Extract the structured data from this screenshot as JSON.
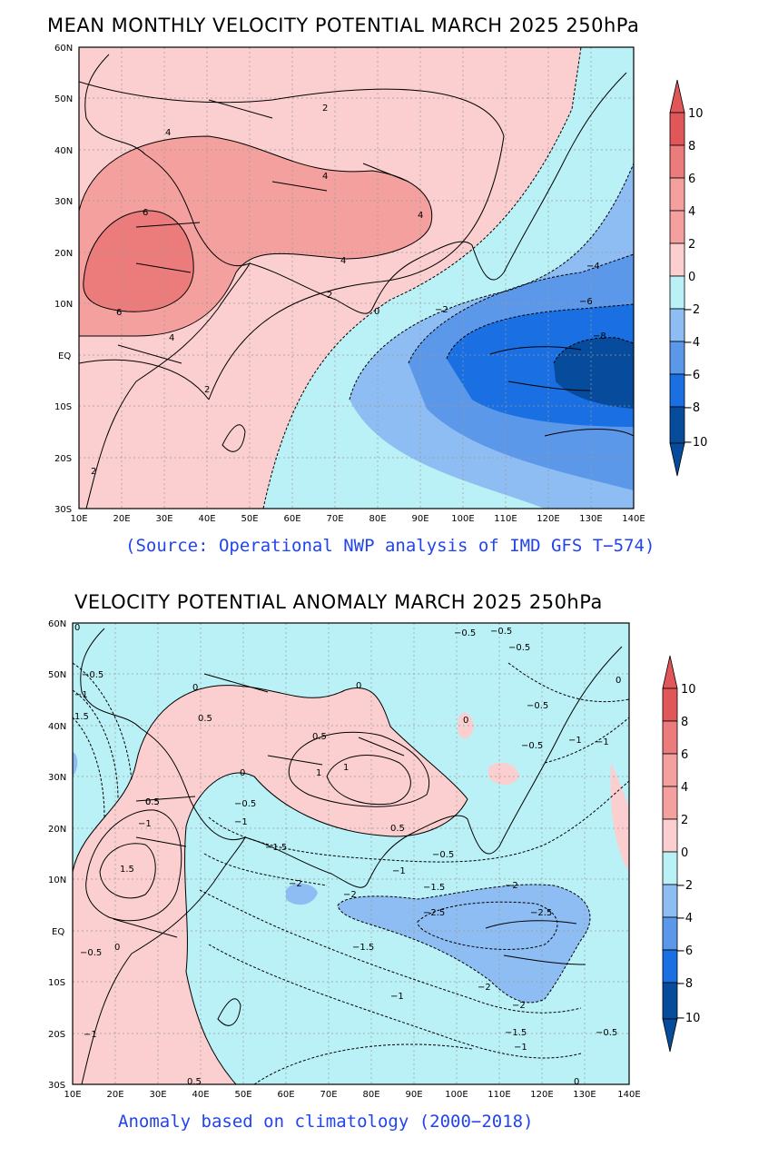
{
  "colors": {
    "r4": "#e15759",
    "r3": "#ec7c7c",
    "r2": "#f4a09f",
    "r1": "#fbcfcf",
    "b1": "#b9f1f7",
    "b2": "#8dbdf2",
    "b3": "#5c98ea",
    "b4": "#1a6fe2",
    "b5": "#074c9c",
    "land": "#000000",
    "source_text": "#2244ee"
  },
  "panels": [
    {
      "title": "MEAN MONTHLY VELOCITY POTENTIAL MARCH 2025 250hPa",
      "footer": "(Source: Operational NWP analysis of IMD GFS T−574)",
      "lat_labels": [
        "60N",
        "50N",
        "40N",
        "30N",
        "20N",
        "10N",
        "EQ",
        "10S",
        "20S",
        "30S"
      ],
      "lon_labels": [
        "10E",
        "20E",
        "30E",
        "40E",
        "50E",
        "60E",
        "70E",
        "80E",
        "90E",
        "100E",
        "110E",
        "120E",
        "130E",
        "140E"
      ],
      "colorbar_labels": [
        "10",
        "8",
        "6",
        "4",
        "2",
        "0",
        "−2",
        "−4",
        "−6",
        "−8",
        "−10"
      ],
      "contour_labels": [
        "2",
        "4",
        "4",
        "6",
        "4",
        "6",
        "4",
        "2",
        "2",
        "0",
        "−2",
        "−4",
        "−6",
        "−8",
        "4",
        "2"
      ]
    },
    {
      "title": "VELOCITY POTENTIAL ANOMALY MARCH 2025 250hPa",
      "footer": "Anomaly based on climatology (2000−2018)",
      "lat_labels": [
        "60N",
        "50N",
        "40N",
        "30N",
        "20N",
        "10N",
        "EQ",
        "10S",
        "20S",
        "30S"
      ],
      "lon_labels": [
        "10E",
        "20E",
        "30E",
        "40E",
        "50E",
        "60E",
        "70E",
        "80E",
        "90E",
        "100E",
        "110E",
        "120E",
        "130E",
        "140E"
      ],
      "colorbar_labels": [
        "10",
        "8",
        "6",
        "4",
        "2",
        "0",
        "−2",
        "−4",
        "−6",
        "−8",
        "−10"
      ],
      "contour_labels": [
        "0",
        "−0.5",
        "0",
        "0.5",
        "0.5",
        "1",
        "1",
        "0",
        "0.5",
        "0",
        "−0.5",
        "−1",
        "−1.5",
        "−2",
        "1.5",
        "−1",
        "0.5",
        "−2",
        "−2.5",
        "−2.5",
        "−2",
        "−1.5",
        "−1",
        "−0.5",
        "−0.5",
        "−1",
        "−1",
        "−1.5",
        "−2",
        "−2",
        "−1",
        "−1.5",
        "−1",
        "−0.5",
        "−1",
        "0",
        "0.5",
        "0",
        "1.5",
        "−0.5",
        "−1",
        "0",
        "−0.5",
        "0.5",
        "−0.5",
        "0",
        "−0.5",
        "−0.5"
      ]
    }
  ]
}
